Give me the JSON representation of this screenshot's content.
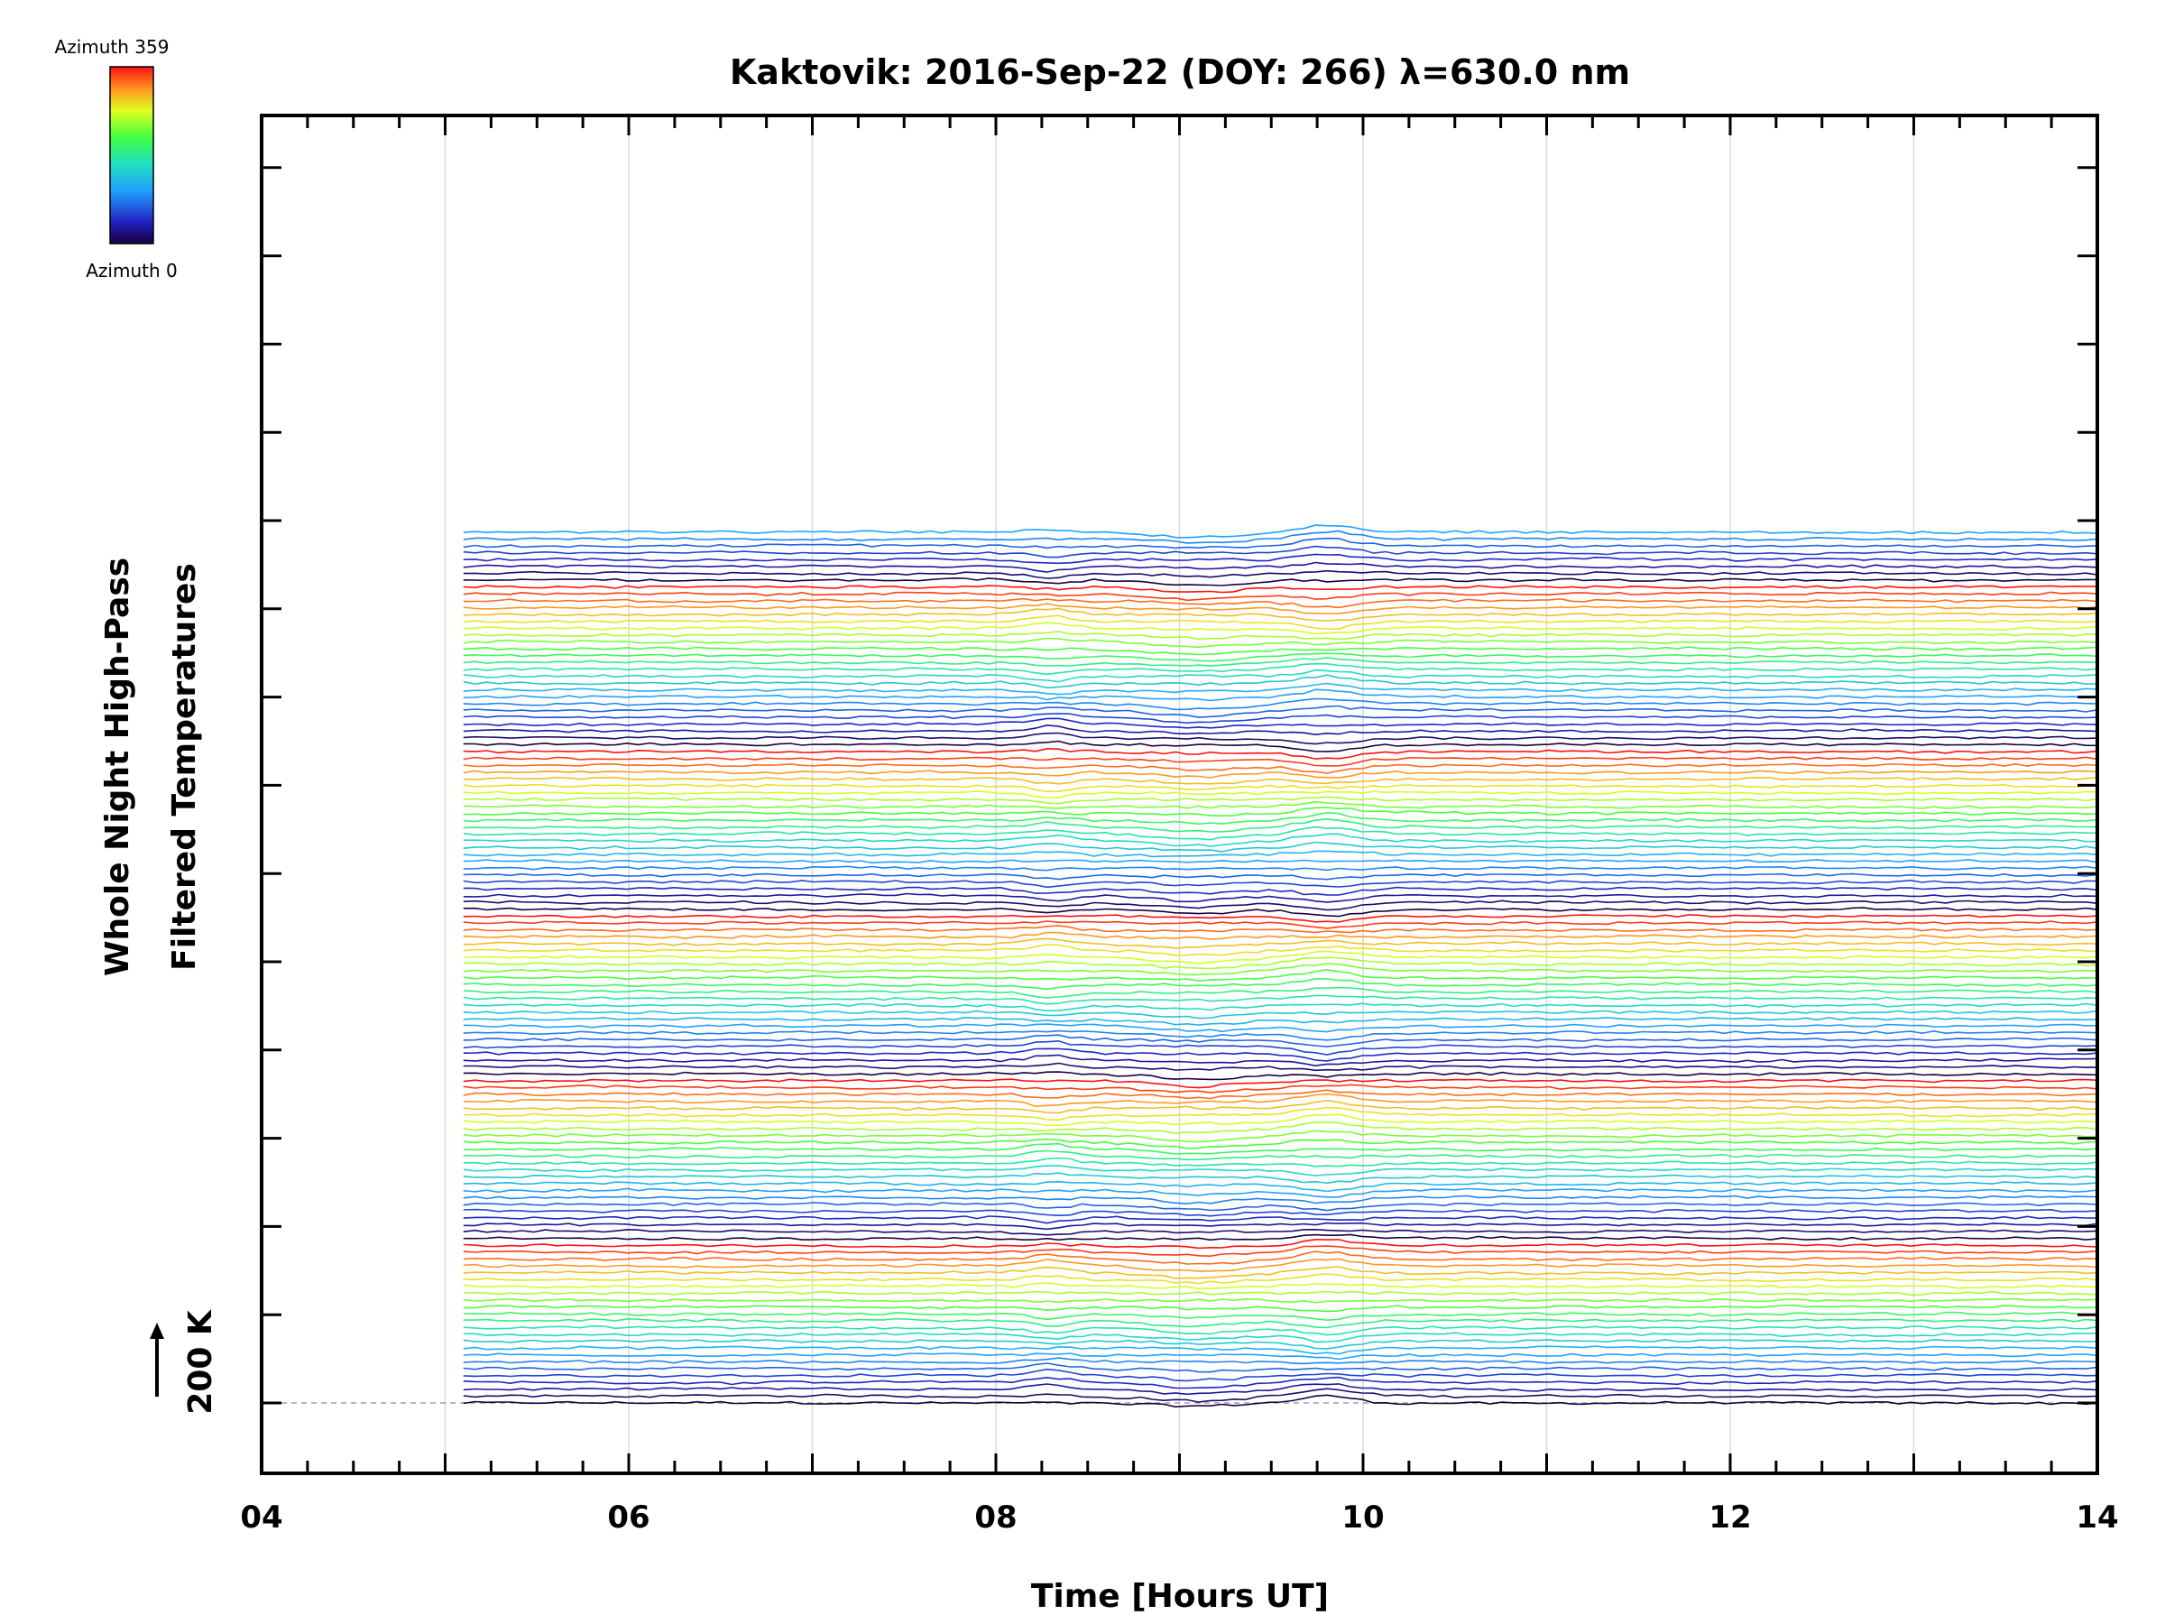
{
  "chart_data": {
    "type": "line",
    "title": "Kaktovik: 2016-Sep-22 (DOY: 266) λ=630.0 nm",
    "xlabel": "Time [Hours UT]",
    "ylabel_line1": "Whole Night High-Pass",
    "ylabel_line2": "Filtered Temperatures",
    "xlim": [
      4,
      14
    ],
    "x_ticks": [
      "04",
      "06",
      "08",
      "10",
      "12",
      "14"
    ],
    "x_tick_values": [
      4,
      6,
      8,
      10,
      12,
      14
    ],
    "data_start_hour": 5.1,
    "data_end_hour": 14.0,
    "scale_label": "200 K",
    "baseline_offset_k": 0,
    "trace_count": 128,
    "trace_spacing_k": 53,
    "azimuth_range_deg": [
      0,
      359
    ],
    "legend": {
      "top_label": "Azimuth  359",
      "bottom_label": "Azimuth  0",
      "placement": "top-left"
    },
    "grid": "vertical-hourly",
    "colors": {
      "axis": "#000000",
      "grid": "#d9d9d9",
      "baseline": "#a0a0a0"
    }
  }
}
